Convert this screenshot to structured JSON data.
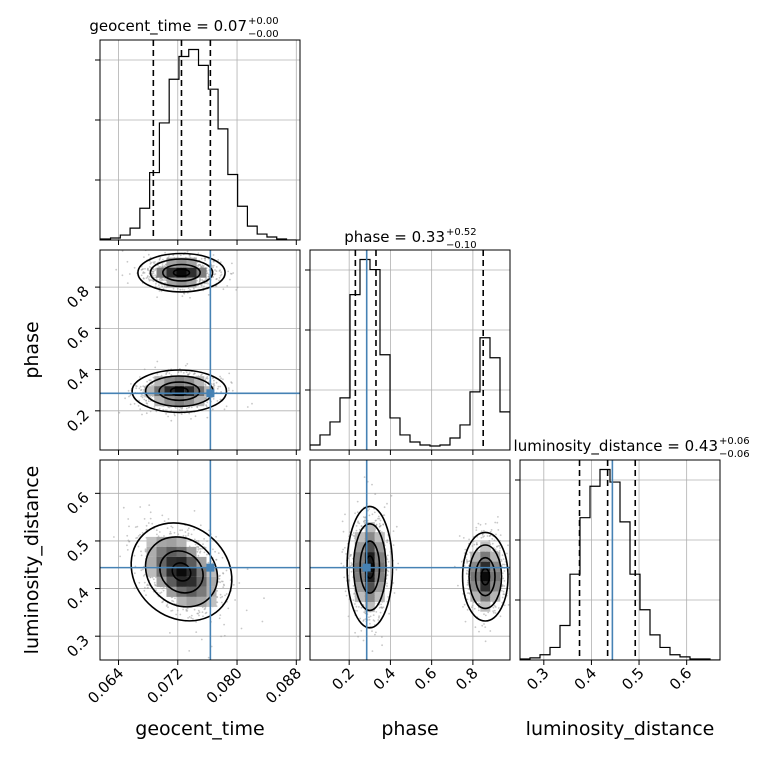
{
  "chart_data": {
    "type": "corner",
    "grid": true,
    "params": [
      "geocent_time",
      "phase",
      "luminosity_distance"
    ],
    "axis_labels": {
      "x": [
        "geocent_time",
        "phase",
        "luminosity_distance"
      ],
      "y": [
        "phase",
        "luminosity_distance"
      ]
    },
    "ranges": [
      [
        0.0615,
        0.0885
      ],
      [
        0.01,
        0.98
      ],
      [
        0.25,
        0.67
      ]
    ],
    "ticks": {
      "geocent_time": {
        "values": [
          0.064,
          0.072,
          0.08,
          0.088
        ],
        "labels": [
          "0.064",
          "0.072",
          "0.080",
          "0.088"
        ]
      },
      "phase": {
        "values": [
          0.2,
          0.4,
          0.6,
          0.8
        ],
        "labels": [
          "0.2",
          "0.4",
          "0.6",
          "0.8"
        ]
      },
      "luminosity_distance": {
        "values": [
          0.3,
          0.4,
          0.5,
          0.6
        ],
        "labels": [
          "0.3",
          "0.4",
          "0.5",
          "0.6"
        ]
      }
    },
    "truths": [
      0.0764,
      0.285,
      0.444
    ],
    "titles": [
      {
        "prefix": "geocent_time = 0.07",
        "sup": "+0.00",
        "sub": "−0.00",
        "quantiles": [
          0.0687,
          0.0725,
          0.0764
        ]
      },
      {
        "prefix": "phase = 0.33",
        "sup": "+0.52",
        "sub": "−0.10",
        "quantiles": [
          0.23,
          0.33,
          0.85
        ]
      },
      {
        "prefix": "luminosity_distance = 0.43",
        "sup": "+0.06",
        "sub": "−0.06",
        "quantiles": [
          0.375,
          0.434,
          0.492
        ]
      }
    ],
    "histograms": [
      {
        "param": "geocent_time",
        "edges_start": 0.0616,
        "bin_width": 0.00132,
        "counts": [
          1,
          2,
          5,
          12,
          32,
          68,
          118,
          162,
          185,
          192,
          176,
          152,
          112,
          66,
          34,
          14,
          6,
          3,
          1,
          0
        ]
      },
      {
        "param": "phase",
        "edges_start": 0.01,
        "bin_width": 0.0485,
        "counts": [
          5,
          15,
          28,
          52,
          155,
          190,
          180,
          95,
          32,
          15,
          8,
          5,
          4,
          5,
          12,
          25,
          58,
          112,
          92,
          38
        ]
      },
      {
        "param": "luminosity_distance",
        "edges_start": 0.25,
        "bin_width": 0.021,
        "counts": [
          1,
          2,
          5,
          12,
          33,
          82,
          136,
          166,
          182,
          170,
          132,
          82,
          48,
          24,
          12,
          5,
          3,
          1,
          1,
          0
        ]
      }
    ],
    "contours_2d": [
      {
        "x": "geocent_time",
        "y": "phase",
        "modes": [
          {
            "center": [
              0.0725,
              0.87
            ],
            "sx": 0.0024,
            "sy": 0.038,
            "rho": 0
          },
          {
            "center": [
              0.0722,
              0.295
            ],
            "sx": 0.0026,
            "sy": 0.042,
            "rho": 0
          }
        ]
      },
      {
        "x": "geocent_time",
        "y": "luminosity_distance",
        "modes": [
          {
            "center": [
              0.0725,
              0.435
            ],
            "sx": 0.0028,
            "sy": 0.046,
            "rho": -0.45
          }
        ]
      },
      {
        "x": "phase",
        "y": "luminosity_distance",
        "modes": [
          {
            "center": [
              0.3,
              0.445
            ],
            "sx": 0.045,
            "sy": 0.052,
            "rho": 0
          },
          {
            "center": [
              0.86,
              0.425
            ],
            "sx": 0.045,
            "sy": 0.038,
            "rho": 0
          }
        ]
      }
    ]
  }
}
